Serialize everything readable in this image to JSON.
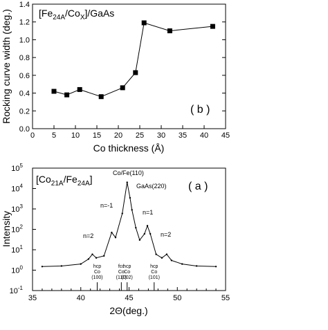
{
  "chart_data": [
    {
      "type": "line",
      "panel_label": "( b )",
      "title_parts": {
        "a": "[Fe",
        "b": "24A",
        "c": "/Co",
        "d": "X",
        "e": "]/GaAs"
      },
      "xlabel": "Co thickness (Å)",
      "ylabel": "Rocking curve width (deg.)",
      "xlim": [
        0,
        45
      ],
      "ylim": [
        0,
        1.4
      ],
      "x_ticks": [
        "0",
        "5",
        "10",
        "15",
        "20",
        "25",
        "30",
        "35",
        "40",
        "45"
      ],
      "y_ticks": [
        "0.0",
        "0.2",
        "0.4",
        "0.6",
        "0.8",
        "1.0",
        "1.2",
        "1.4"
      ],
      "x": [
        5,
        8,
        11,
        16,
        21,
        24,
        26,
        32,
        42
      ],
      "y": [
        0.42,
        0.38,
        0.44,
        0.36,
        0.46,
        0.63,
        1.19,
        1.1,
        1.15
      ]
    },
    {
      "type": "line",
      "panel_label": "( a )",
      "title_parts": {
        "a": "[Co",
        "b": "21A",
        "c": "/Fe",
        "d": "24A",
        "e": "]"
      },
      "xlabel": "2Θ(deg.)",
      "ylabel": "Intensity",
      "xlim": [
        35,
        55
      ],
      "ylim": [
        0.1,
        100000
      ],
      "yscale": "log",
      "x_ticks": [
        "35",
        "40",
        "45",
        "50",
        "55"
      ],
      "y_ticks": [
        {
          "base": "10",
          "exp": "-1"
        },
        {
          "base": "10",
          "exp": "0"
        },
        {
          "base": "10",
          "exp": "1"
        },
        {
          "base": "10",
          "exp": "2"
        },
        {
          "base": "10",
          "exp": "3"
        },
        {
          "base": "10",
          "exp": "4"
        },
        {
          "base": "10",
          "exp": "5"
        }
      ],
      "x": [
        36,
        38,
        40,
        40.8,
        41.2,
        41.6,
        42.4,
        43.2,
        43.6,
        44.3,
        44.8,
        45.1,
        45.3,
        45.7,
        46.1,
        46.6,
        46.9,
        47.2,
        47.8,
        48.4,
        48.9,
        49.4,
        50.5,
        52,
        54
      ],
      "y": [
        1.5,
        1.6,
        2.0,
        3.5,
        6.0,
        4.0,
        5.0,
        70,
        40,
        600,
        20000,
        3500,
        900,
        120,
        30,
        60,
        150,
        60,
        6,
        4,
        6,
        3,
        2.0,
        1.6,
        1.5
      ],
      "annotations": {
        "peak_main": "Co/Fe(110)",
        "peak_gaas": "GaAs(220)",
        "sat_minus1": "n=-1",
        "sat_plus1": "n=1",
        "sat_minus2": "n=2",
        "sat_plus2": "n=2"
      },
      "reference_markers": [
        {
          "x": 41.7,
          "line1": "hcp",
          "line2": "Co",
          "line3": "(100)"
        },
        {
          "x": 44.2,
          "line1": "fcc",
          "line2": "Co",
          "line3": "(111)"
        },
        {
          "x": 44.8,
          "line1": "hcp",
          "line2": "Co",
          "line3": "(002)"
        },
        {
          "x": 47.6,
          "line1": "hcp",
          "line2": "Co",
          "line3": "(101)"
        }
      ]
    }
  ]
}
